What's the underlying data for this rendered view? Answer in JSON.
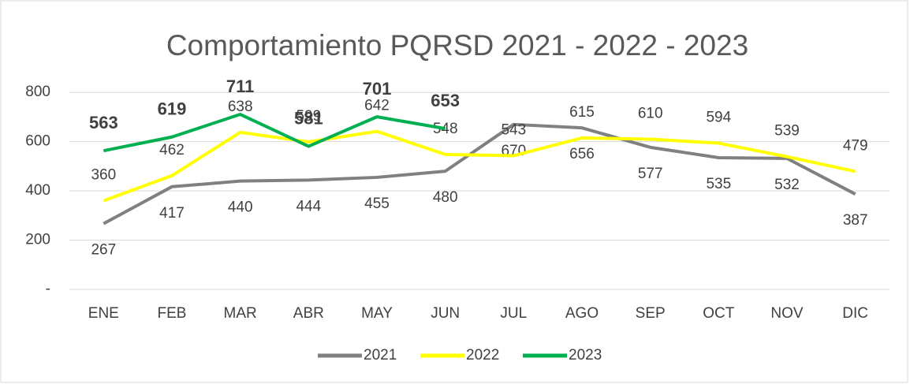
{
  "chart_data": {
    "type": "line",
    "title": "Comportamiento PQRSD 2021 - 2022 - 2023",
    "categories": [
      "ENE",
      "FEB",
      "MAR",
      "ABR",
      "MAY",
      "JUN",
      "JUL",
      "AGO",
      "SEP",
      "OCT",
      "NOV",
      "DIC"
    ],
    "series": [
      {
        "name": "2021",
        "color": "#808080",
        "values": [
          267,
          417,
          440,
          444,
          455,
          480,
          670,
          656,
          577,
          535,
          532,
          387
        ]
      },
      {
        "name": "2022",
        "color": "#ffff00",
        "values": [
          360,
          462,
          638,
          599,
          642,
          548,
          543,
          615,
          610,
          594,
          539,
          479
        ]
      },
      {
        "name": "2023",
        "color": "#00b050",
        "values": [
          563,
          619,
          711,
          581,
          701,
          653,
          null,
          null,
          null,
          null,
          null,
          null
        ]
      }
    ],
    "ylim": [
      0,
      900
    ],
    "yticks": [
      {
        "value": 0,
        "label": "-"
      },
      200,
      400,
      600,
      800
    ],
    "grid": true,
    "legend": "bottom"
  }
}
